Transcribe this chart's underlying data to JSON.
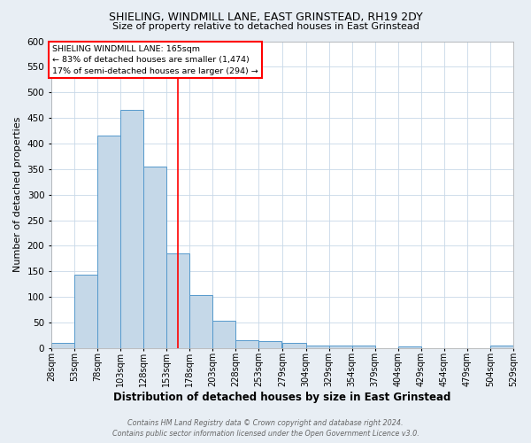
{
  "title": "SHIELING, WINDMILL LANE, EAST GRINSTEAD, RH19 2DY",
  "subtitle": "Size of property relative to detached houses in East Grinstead",
  "xlabel": "Distribution of detached houses by size in East Grinstead",
  "ylabel": "Number of detached properties",
  "bin_edges": [
    28,
    53,
    78,
    103,
    128,
    153,
    178,
    203,
    228,
    253,
    279,
    304,
    329,
    354,
    379,
    404,
    429,
    454,
    479,
    504,
    529
  ],
  "bar_heights": [
    10,
    143,
    415,
    465,
    355,
    185,
    103,
    53,
    15,
    13,
    10,
    5,
    5,
    5,
    0,
    4,
    0,
    0,
    0,
    5
  ],
  "bar_color": "#c5d8e8",
  "bar_edge_color": "#5599cc",
  "red_line_x": 165,
  "ylim": [
    0,
    600
  ],
  "yticks": [
    0,
    50,
    100,
    150,
    200,
    250,
    300,
    350,
    400,
    450,
    500,
    550,
    600
  ],
  "annotation_title": "SHIELING WINDMILL LANE: 165sqm",
  "annotation_line1": "← 83% of detached houses are smaller (1,474)",
  "annotation_line2": "17% of semi-detached houses are larger (294) →",
  "footer_line1": "Contains HM Land Registry data © Crown copyright and database right 2024.",
  "footer_line2": "Contains public sector information licensed under the Open Government Licence v3.0.",
  "background_color": "#e8eef4",
  "plot_bg_color": "#ffffff",
  "grid_color": "#c8d8e8",
  "title_fontsize": 9,
  "subtitle_fontsize": 8,
  "ylabel_fontsize": 8,
  "xlabel_fontsize": 8.5,
  "ytick_fontsize": 7.5,
  "xtick_fontsize": 7
}
